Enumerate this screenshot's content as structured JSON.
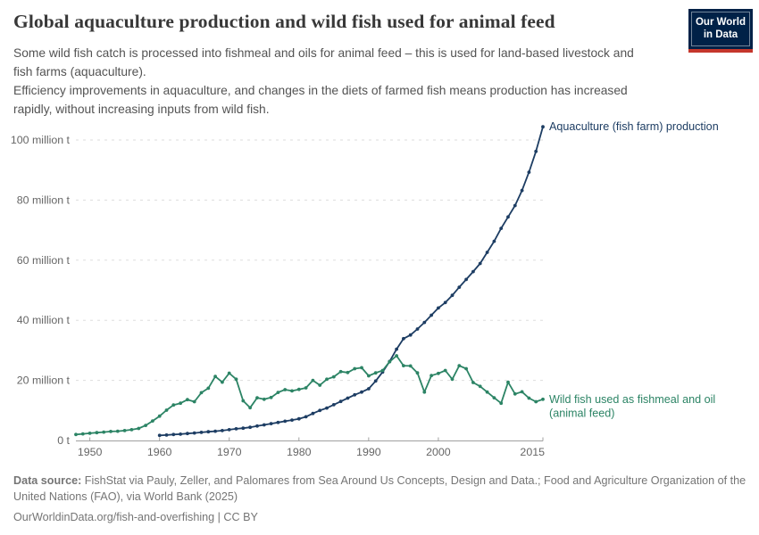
{
  "header": {
    "title": "Global aquaculture production and wild fish used for animal feed",
    "subtitle1": "Some wild fish catch is processed into fishmeal and oils for animal feed – this is used for land-based livestock and fish farms (aquaculture).",
    "subtitle2": "Efficiency improvements in aquaculture, and changes in the diets of farmed fish means production has increased rapidly, without increasing inputs from wild fish.",
    "logo": {
      "line1": "Our World",
      "line2": "in Data",
      "bg_color": "#002147",
      "stripe_color": "#c5372c"
    }
  },
  "chart_data": {
    "type": "line",
    "title": "Global aquaculture production and wild fish used for animal feed",
    "xlabel": "",
    "ylabel": "",
    "grid": true,
    "gridline_color": "#dddddd",
    "axis_color": "#a0a0a0",
    "tick_label_color": "#666666",
    "legend_position": "line-end",
    "xlim": [
      1948,
      2015
    ],
    "ylim": [
      0,
      100
    ],
    "x_ticks": [
      1950,
      1960,
      1970,
      1980,
      1990,
      2000,
      2015
    ],
    "y_ticks": [
      {
        "value": 0,
        "label": "0 t"
      },
      {
        "value": 20,
        "label": "20 million t"
      },
      {
        "value": 40,
        "label": "40 million t"
      },
      {
        "value": 60,
        "label": "60 million t"
      },
      {
        "value": 80,
        "label": "80 million t"
      },
      {
        "value": 100,
        "label": "100 million t"
      }
    ],
    "series": [
      {
        "name": "Aquaculture (fish farm) production",
        "label_lines": [
          "Aquaculture (fish farm) production"
        ],
        "color": "#1d3d63",
        "start_year": 1960,
        "values": [
          1.7,
          1.8,
          2.0,
          2.1,
          2.3,
          2.5,
          2.7,
          2.9,
          3.1,
          3.3,
          3.6,
          3.9,
          4.1,
          4.4,
          4.8,
          5.2,
          5.6,
          6.0,
          6.4,
          6.8,
          7.2,
          7.9,
          9.0,
          10.0,
          10.8,
          11.9,
          13.0,
          14.1,
          15.2,
          16.1,
          17.2,
          19.8,
          22.8,
          26.3,
          30.4,
          33.9,
          35.1,
          37.1,
          39.3,
          41.7,
          44.1,
          45.9,
          48.3,
          51.0,
          53.6,
          56.2,
          58.9,
          62.6,
          66.3,
          70.6,
          74.4,
          78.2,
          83.2,
          89.3,
          96.2,
          104.4
        ]
      },
      {
        "name": "Wild fish used as fishmeal and oil (animal feed)",
        "label_lines": [
          "Wild fish used as fishmeal and oil",
          "(animal feed)"
        ],
        "color": "#2c8465",
        "start_year": 1948,
        "values": [
          2.0,
          2.2,
          2.4,
          2.6,
          2.8,
          3.0,
          3.1,
          3.3,
          3.6,
          4.0,
          5.0,
          6.5,
          8.1,
          10.1,
          11.8,
          12.4,
          13.6,
          12.9,
          15.9,
          17.4,
          21.3,
          19.4,
          22.4,
          20.4,
          13.2,
          10.9,
          14.2,
          13.7,
          14.3,
          16.0,
          16.9,
          16.5,
          17.0,
          17.5,
          20.0,
          18.4,
          20.4,
          21.2,
          22.9,
          22.6,
          23.9,
          24.2,
          21.5,
          22.5,
          23.3,
          26.2,
          28.2,
          24.9,
          24.8,
          22.5,
          16.1,
          21.6,
          22.3,
          23.3,
          20.4,
          24.9,
          23.9,
          19.3,
          18.0,
          16.1,
          14.2,
          12.4,
          19.4,
          15.5,
          16.2,
          14.1,
          12.9,
          13.7
        ]
      }
    ]
  },
  "footer": {
    "source_label": "Data source:",
    "source_text": " FishStat via Pauly, Zeller, and Palomares from Sea Around Us Concepts, Design and Data.; Food and Agriculture Organization of the United Nations (FAO), via World Bank (2025)",
    "link_line": "OurWorldinData.org/fish-and-overfishing | CC BY"
  }
}
